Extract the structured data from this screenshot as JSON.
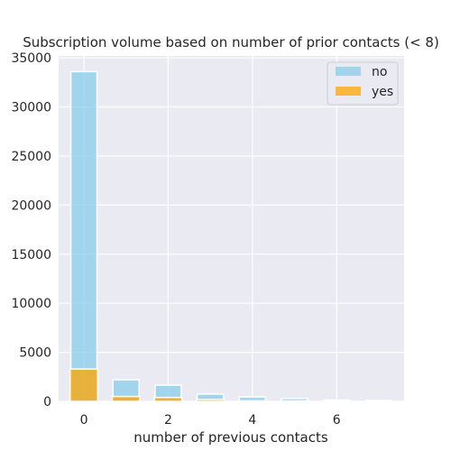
{
  "chart_data": {
    "type": "bar",
    "title": "Subscription volume based on number of prior contacts (< 8)",
    "xlabel": "number of previous contacts",
    "ylabel": "",
    "xlim": [
      -0.6,
      7.6
    ],
    "ylim": [
      0,
      35200
    ],
    "xticks": [
      0,
      2,
      4,
      6
    ],
    "xtick_labels": [
      "0",
      "2",
      "4",
      "6"
    ],
    "yticks": [
      0,
      5000,
      10000,
      15000,
      20000,
      25000,
      30000,
      35000
    ],
    "ytick_labels": [
      "0",
      "5000",
      "10000",
      "15000",
      "20000",
      "25000",
      "30000",
      "35000"
    ],
    "grid": true,
    "legend_position": "top-right",
    "series": [
      {
        "name": "no",
        "color": "#87ceeb",
        "x": [
          0,
          1,
          2,
          3,
          4,
          5,
          6,
          7
        ],
        "values": [
          33600,
          2200,
          1650,
          750,
          450,
          300,
          130,
          120
        ]
      },
      {
        "name": "yes",
        "color": "#ffa500",
        "x": [
          0,
          1,
          2,
          3,
          4,
          5,
          6,
          7
        ],
        "values": [
          3300,
          500,
          400,
          200,
          50,
          50,
          20,
          10
        ]
      }
    ]
  }
}
